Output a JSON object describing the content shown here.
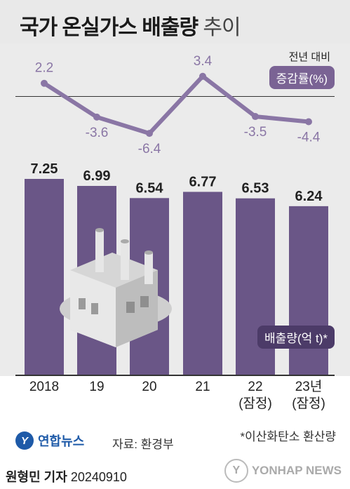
{
  "title": {
    "bold": "국가 온실가스 배출량",
    "light": "추이"
  },
  "legend": {
    "rate_header": "전년 대비",
    "rate_badge": "증감률(%)",
    "emission_badge": "배출량(억 t)*"
  },
  "chart_data": [
    {
      "type": "bar",
      "categories": [
        "2018",
        "19",
        "20",
        "21",
        "22\n(잠정)",
        "23년\n(잠정)"
      ],
      "values": [
        7.25,
        6.99,
        6.54,
        6.77,
        6.53,
        6.24
      ],
      "series_label": "배출량(억 t)*",
      "ylim": [
        0,
        7.6
      ],
      "color": "#6a5687"
    },
    {
      "type": "line",
      "categories": [
        "2018",
        "19",
        "20",
        "21",
        "22\n(잠정)",
        "23년\n(잠정)"
      ],
      "values": [
        2.2,
        -3.6,
        -6.4,
        3.4,
        -3.5,
        -4.4
      ],
      "value_labels": [
        "2.2",
        "-3.6",
        "-6.4",
        "3.4",
        "-3.5",
        "-4.4"
      ],
      "series_label": "증감률(%)",
      "color": "#8a76a5"
    }
  ],
  "x_labels": [
    {
      "line1": "2018",
      "line2": ""
    },
    {
      "line1": "19",
      "line2": ""
    },
    {
      "line1": "20",
      "line2": ""
    },
    {
      "line1": "21",
      "line2": ""
    },
    {
      "line1": "22",
      "line2": "(잠정)"
    },
    {
      "line1": "23년",
      "line2": "(잠정)"
    }
  ],
  "footer": {
    "logo": "연합뉴스",
    "source": "자료: 환경부",
    "footnote": "*이산화탄소 환산량",
    "author_name": "원형민 기자",
    "author_date": "20240910",
    "agency": "YONHAP NEWS"
  },
  "colors": {
    "bar": "#6a5687",
    "line": "#8a76a5",
    "badge": "#7a6394",
    "badge_dark": "#4c3b68"
  }
}
